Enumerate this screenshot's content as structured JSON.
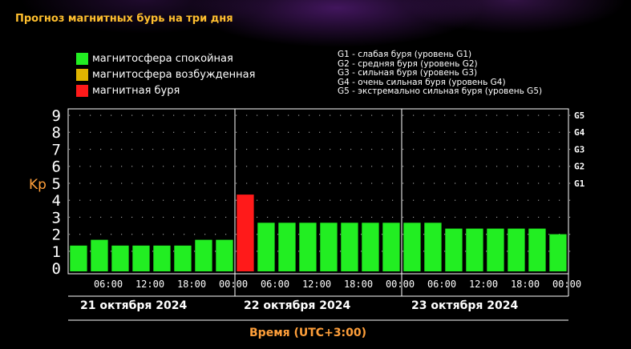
{
  "title": "Прогноз магнитных бурь на три дня",
  "legend": [
    {
      "label": "магнитосфера спокойная",
      "color": "#22ee22"
    },
    {
      "label": "магнитосфера возбужденная",
      "color": "#e0b400"
    },
    {
      "label": "магнитная буря",
      "color": "#ff1a1a"
    }
  ],
  "g_legend": [
    "G1 - слабая буря (уровень G1)",
    "G2 - средняя буря (уровень G2)",
    "G3 - сильная буря (уровень G3)",
    "G4 - очень сильная буря (уровень G4)",
    "G5 - экстремально сильная буря (уровень G5)"
  ],
  "dates": [
    "21 октября 2024",
    "22 октября 2024",
    "23 октября 2024"
  ],
  "xaxis_title": "Время (UTC+3:00)",
  "chart_data": {
    "type": "bar",
    "ylabel": "Kp",
    "xlabel": "Время (UTC+3:00)",
    "ylim": [
      0,
      9
    ],
    "yticks": [
      0,
      1,
      2,
      3,
      4,
      5,
      6,
      7,
      8,
      9
    ],
    "right_ticks": [
      {
        "label": "G1",
        "kp": 5
      },
      {
        "label": "G2",
        "kp": 6
      },
      {
        "label": "G3",
        "kp": 7
      },
      {
        "label": "G4",
        "kp": 8
      },
      {
        "label": "G5",
        "kp": 9
      }
    ],
    "grid": true,
    "x_tick_labels": [
      "06:00",
      "12:00",
      "18:00",
      "00:00",
      "06:00",
      "12:00",
      "18:00",
      "00:00",
      "06:00",
      "12:00",
      "18:00",
      "00:00"
    ],
    "values": [
      1.33,
      1.67,
      1.33,
      1.33,
      1.33,
      1.33,
      1.67,
      1.67,
      4.33,
      2.67,
      2.67,
      2.67,
      2.67,
      2.67,
      2.67,
      2.67,
      2.67,
      2.67,
      2.33,
      2.33,
      2.33,
      2.33,
      2.33,
      2.0
    ],
    "bar_colors": [
      "#22ee22",
      "#22ee22",
      "#22ee22",
      "#22ee22",
      "#22ee22",
      "#22ee22",
      "#22ee22",
      "#22ee22",
      "#ff1a1a",
      "#22ee22",
      "#22ee22",
      "#22ee22",
      "#22ee22",
      "#22ee22",
      "#22ee22",
      "#22ee22",
      "#22ee22",
      "#22ee22",
      "#22ee22",
      "#22ee22",
      "#22ee22",
      "#22ee22",
      "#22ee22",
      "#22ee22"
    ]
  }
}
